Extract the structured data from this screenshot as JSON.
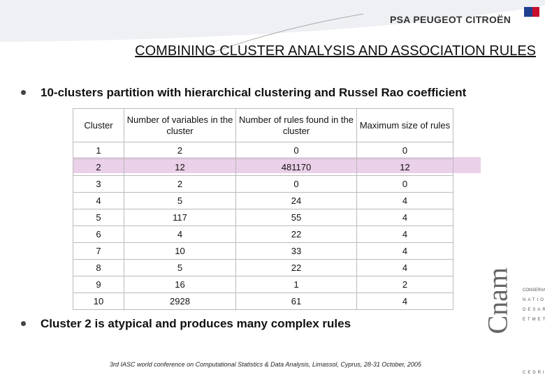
{
  "header": {
    "logo": "PSA PEUGEOT CITROËN",
    "title": "COMBINING CLUSTER ANALYSIS AND ASSOCIATION RULES"
  },
  "bullets": [
    "10-clusters partition with hierarchical clustering and Russel Rao coefficient",
    "Cluster 2 is atypical and  produces many complex rules"
  ],
  "table": {
    "columns": [
      "Cluster",
      "Number of variables in the cluster",
      "Number of rules found in the cluster",
      "Maximum size of rules"
    ],
    "rows": [
      [
        1,
        2,
        0,
        0
      ],
      [
        2,
        12,
        481170,
        12
      ],
      [
        3,
        2,
        0,
        0
      ],
      [
        4,
        5,
        24,
        4
      ],
      [
        5,
        117,
        55,
        4
      ],
      [
        6,
        4,
        22,
        4
      ],
      [
        7,
        10,
        33,
        4
      ],
      [
        8,
        5,
        22,
        4
      ],
      [
        9,
        16,
        1,
        2
      ],
      [
        10,
        2928,
        61,
        4
      ]
    ]
  },
  "side_logo": {
    "mark": "Cnam",
    "lines": [
      "CONSERVATOIRE",
      "NATIONAL",
      "DESARTS",
      "ETMETIERS"
    ],
    "bottom": "CEDRIC"
  },
  "footer": "3rd IASC world conference on Computational Statistics & Data Analysis, Limassol, Cyprus, 28-31 October, 2005"
}
